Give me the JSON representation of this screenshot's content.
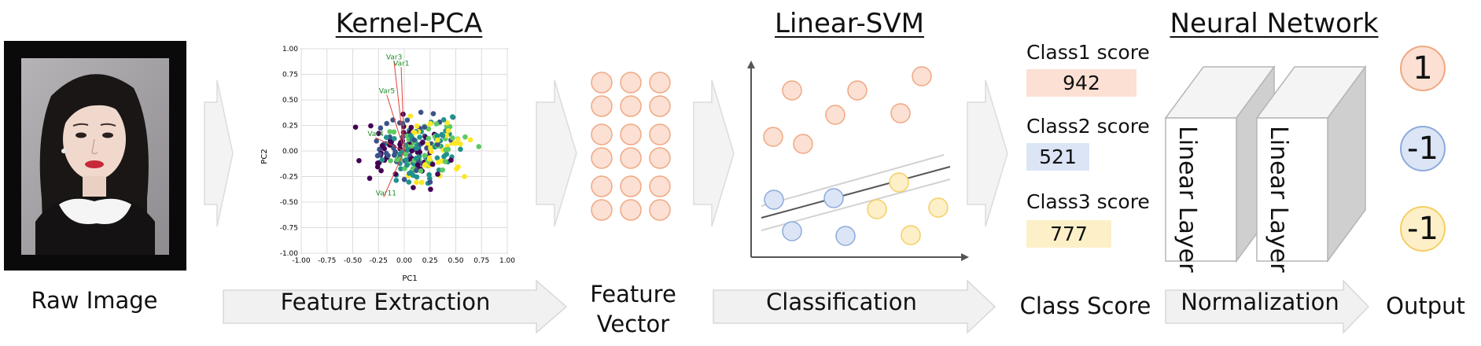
{
  "sections": {
    "kernel_pca": "Kernel-PCA",
    "linear_svm": "Linear-SVM",
    "neural_network": "Neural Network"
  },
  "captions": {
    "raw_image": "Raw Image",
    "feature_vector": [
      "Feature",
      "Vector"
    ],
    "class_score": "Class Score",
    "output": "Output"
  },
  "arrows": {
    "feature_extraction": "Feature Extraction",
    "classification": "Classification",
    "normalization": "Normalization"
  },
  "scores": [
    {
      "label": "Class1 score",
      "value": "942",
      "color": "#fbe0d3"
    },
    {
      "label": "Class2 score",
      "value": "521",
      "color": "#dbe5f6"
    },
    {
      "label": "Class3 score",
      "value": "777",
      "color": "#fdf0c8"
    }
  ],
  "layers": [
    "Linear Layer",
    "Linear Layer"
  ],
  "outputs": [
    {
      "value": "1",
      "fill": "#fbe0d3",
      "stroke": "#f0a883"
    },
    {
      "value": "-1",
      "fill": "#dbe5f6",
      "stroke": "#8eaadb"
    },
    {
      "value": "-1",
      "fill": "#fdf0c8",
      "stroke": "#f4cf63"
    }
  ],
  "pca_plot": {
    "xlabel": "PC1",
    "ylabel": "PC2",
    "xticks": [
      "-1.00",
      "-0.75",
      "-0.50",
      "-0.25",
      "0.00",
      "0.25",
      "0.50",
      "0.75",
      "1.00"
    ],
    "yticks": [
      "1.00",
      "0.75",
      "0.50",
      "0.25",
      "0.00",
      "-0.25",
      "-0.50",
      "-0.75",
      "-1.00"
    ],
    "vector_labels": [
      "Var3",
      "Var1",
      "Var5",
      "Var4",
      "Var11"
    ]
  },
  "colors": {
    "orange_fill": "#fbe0d3",
    "orange_stroke": "#f0a883",
    "blue_fill": "#dbe5f6",
    "blue_stroke": "#8eaadb",
    "yellow_fill": "#fdf0c8",
    "yellow_stroke": "#f4cf63"
  }
}
